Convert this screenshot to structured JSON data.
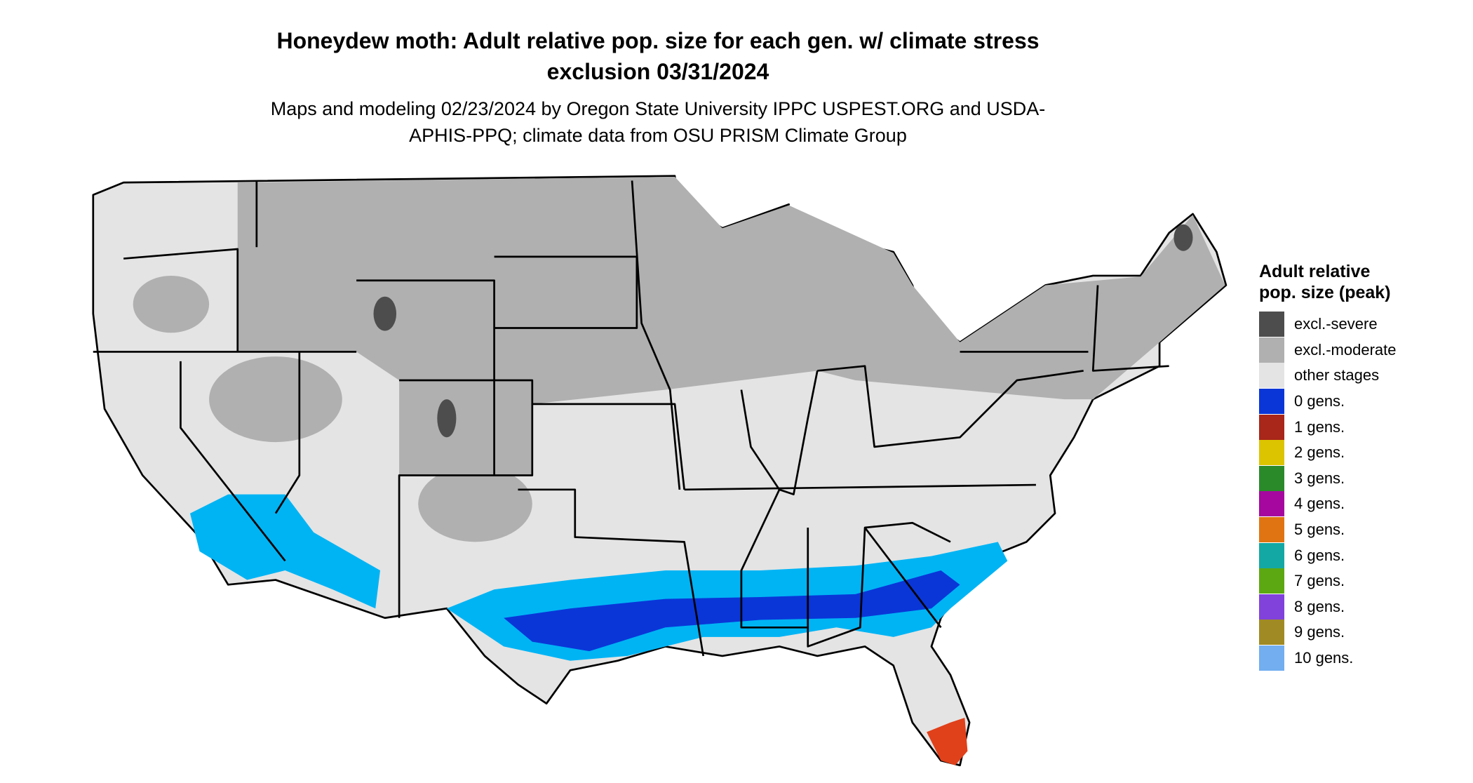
{
  "title": "Honeydew moth: Adult relative pop. size for each gen. w/ climate stress exclusion 03/31/2024",
  "subtitle": "Maps and modeling 02/23/2024 by Oregon State University IPPC USPEST.ORG and USDA-APHIS-PPQ; climate data from OSU PRISM Climate Group",
  "legend": {
    "title": "Adult relative pop. size (peak)",
    "items": [
      {
        "label": "excl.-severe",
        "color": "#4d4d4d"
      },
      {
        "label": "excl.-moderate",
        "color": "#b0b0b0"
      },
      {
        "label": "other stages",
        "color": "#e4e4e4"
      },
      {
        "label": "0 gens.",
        "color": "#0a36d8"
      },
      {
        "label": "1 gens.",
        "color": "#a8261a"
      },
      {
        "label": "2 gens.",
        "color": "#dcc400"
      },
      {
        "label": "3 gens.",
        "color": "#2a8a2a"
      },
      {
        "label": "4 gens.",
        "color": "#a5079f"
      },
      {
        "label": "5 gens.",
        "color": "#e07412"
      },
      {
        "label": "6 gens.",
        "color": "#13a8a4"
      },
      {
        "label": "7 gens.",
        "color": "#5ca812"
      },
      {
        "label": "8 gens.",
        "color": "#8142dc"
      },
      {
        "label": "9 gens.",
        "color": "#a08a24"
      },
      {
        "label": "10 gens.",
        "color": "#72aef0"
      }
    ]
  }
}
